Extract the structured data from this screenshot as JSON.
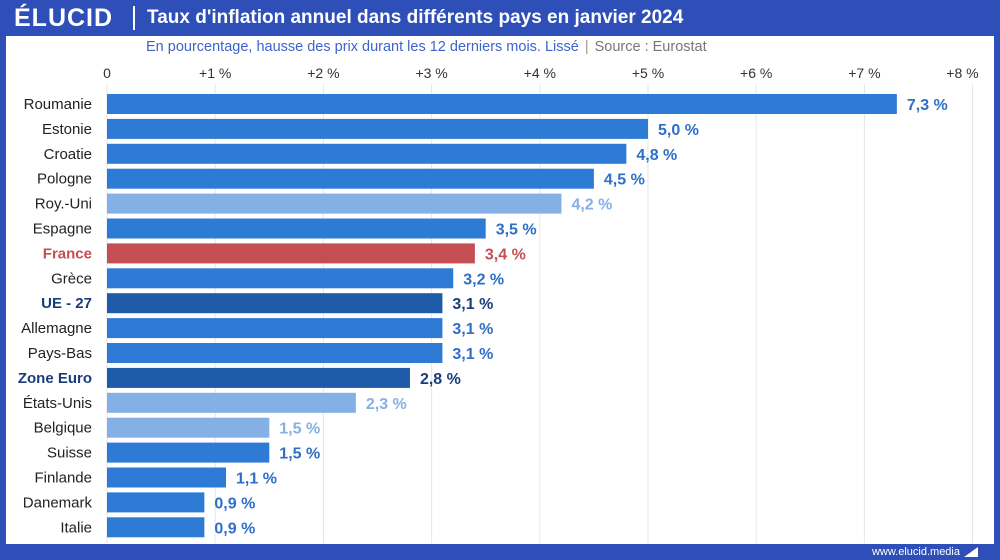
{
  "header": {
    "logo": "ÉLUCID",
    "title": "Taux d'inflation annuel dans différents pays en janvier 2024"
  },
  "subtitle": {
    "text": "En pourcentage, hausse des prix durant les 12 derniers mois. Lissé",
    "separator": "|",
    "source": "Source : Eurostat"
  },
  "footer": {
    "url": "www.elucid.media"
  },
  "colors": {
    "default": "#2e7bd6",
    "light": "#85b0e6",
    "highlight": "#c44f52",
    "aggregate": "#1e5ba8",
    "label_default": "#2e6fc7",
    "label_light": "#85b0e6",
    "label_highlight": "#c44f52",
    "label_aggregate": "#1a3d7a"
  },
  "chart_data": {
    "type": "bar",
    "orientation": "horizontal",
    "title": "Taux d'inflation annuel dans différents pays en janvier 2024",
    "xlim": [
      0,
      8
    ],
    "ticks": [
      {
        "value": 0,
        "label": "0"
      },
      {
        "value": 1,
        "label": "+1 %"
      },
      {
        "value": 2,
        "label": "+2 %"
      },
      {
        "value": 3,
        "label": "+3 %"
      },
      {
        "value": 4,
        "label": "+4 %"
      },
      {
        "value": 5,
        "label": "+5 %"
      },
      {
        "value": 6,
        "label": "+6 %"
      },
      {
        "value": 7,
        "label": "+7 %"
      },
      {
        "value": 8,
        "label": "+8 %"
      }
    ],
    "bars": [
      {
        "category": "Roumanie",
        "value": 7.3,
        "label": "7,3 %",
        "style": "default"
      },
      {
        "category": "Estonie",
        "value": 5.0,
        "label": "5,0 %",
        "style": "default"
      },
      {
        "category": "Croatie",
        "value": 4.8,
        "label": "4,8 %",
        "style": "default"
      },
      {
        "category": "Pologne",
        "value": 4.5,
        "label": "4,5 %",
        "style": "default"
      },
      {
        "category": "Roy.-Uni",
        "value": 4.2,
        "label": "4,2 %",
        "style": "light"
      },
      {
        "category": "Espagne",
        "value": 3.5,
        "label": "3,5 %",
        "style": "default"
      },
      {
        "category": "France",
        "value": 3.4,
        "label": "3,4 %",
        "style": "highlight"
      },
      {
        "category": "Grèce",
        "value": 3.2,
        "label": "3,2 %",
        "style": "default"
      },
      {
        "category": "UE - 27",
        "value": 3.1,
        "label": "3,1 %",
        "style": "aggregate"
      },
      {
        "category": "Allemagne",
        "value": 3.1,
        "label": "3,1 %",
        "style": "default"
      },
      {
        "category": "Pays-Bas",
        "value": 3.1,
        "label": "3,1 %",
        "style": "default"
      },
      {
        "category": "Zone Euro",
        "value": 2.8,
        "label": "2,8 %",
        "style": "aggregate"
      },
      {
        "category": "États-Unis",
        "value": 2.3,
        "label": "2,3 %",
        "style": "light"
      },
      {
        "category": "Belgique",
        "value": 1.5,
        "label": "1,5 %",
        "style": "light"
      },
      {
        "category": "Suisse",
        "value": 1.5,
        "label": "1,5 %",
        "style": "default"
      },
      {
        "category": "Finlande",
        "value": 1.1,
        "label": "1,1 %",
        "style": "default"
      },
      {
        "category": "Danemark",
        "value": 0.9,
        "label": "0,9 %",
        "style": "default"
      },
      {
        "category": "Italie",
        "value": 0.9,
        "label": "0,9 %",
        "style": "default"
      }
    ]
  }
}
